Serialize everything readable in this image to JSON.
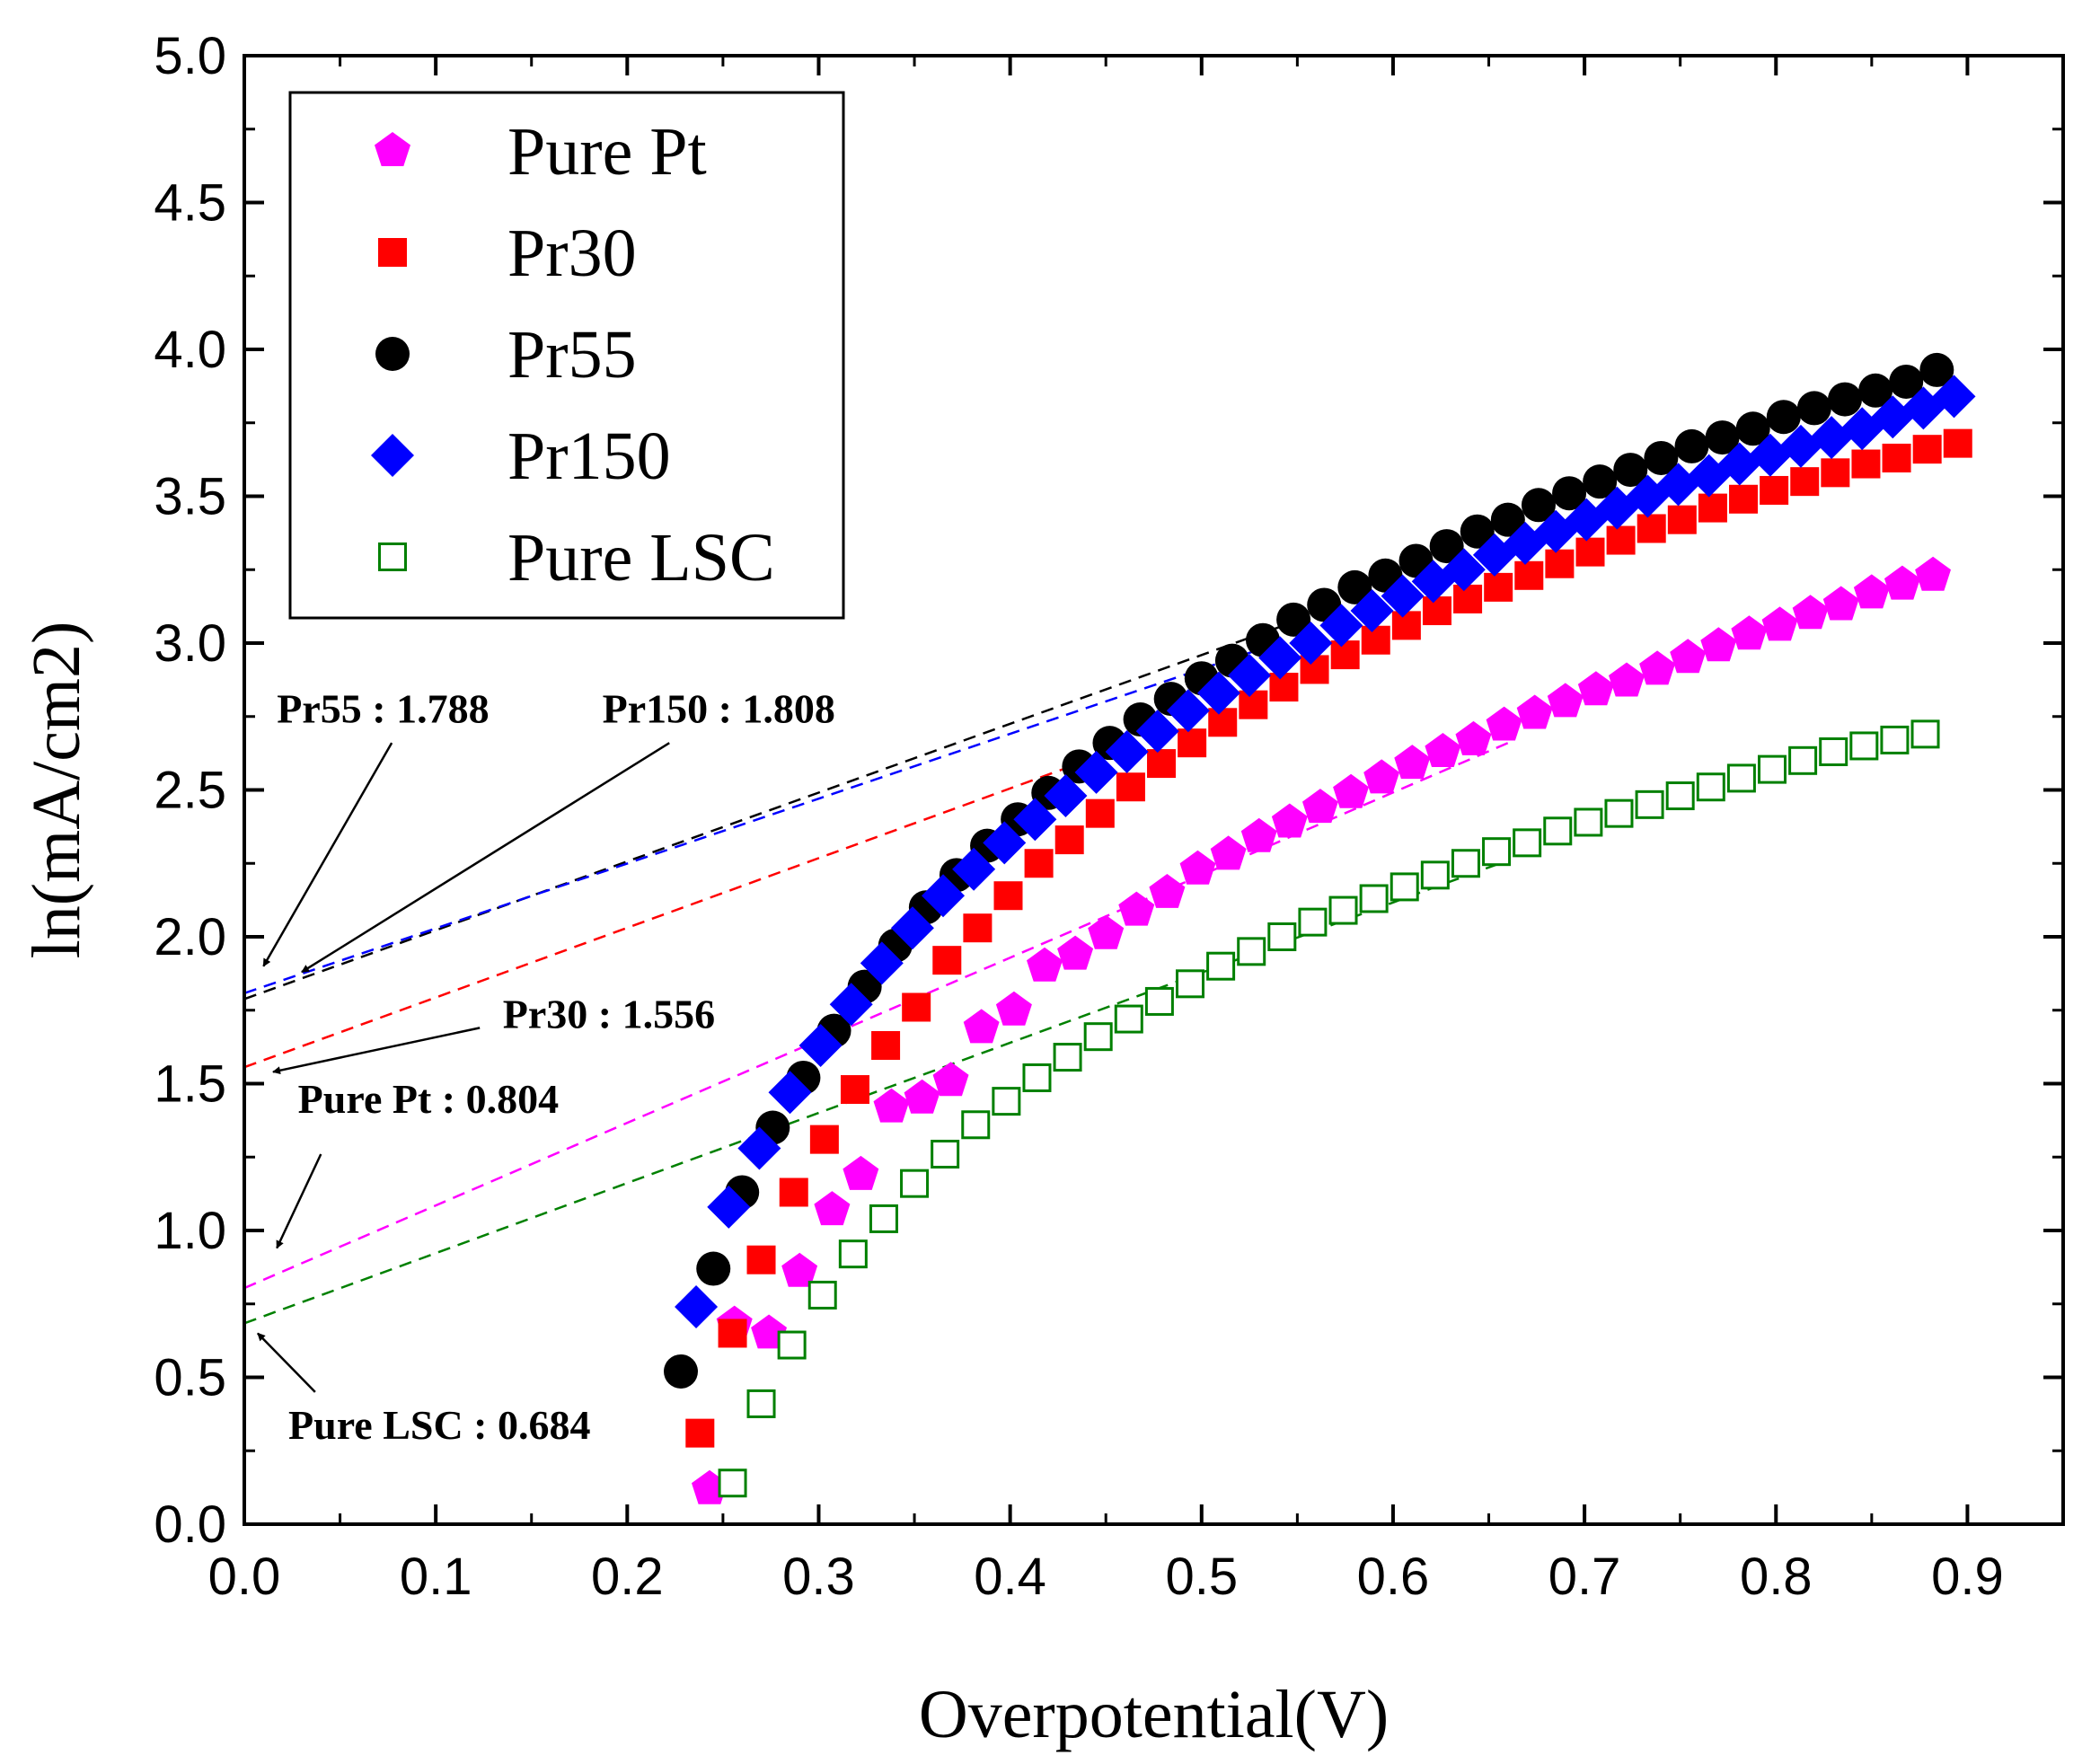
{
  "chart_data": {
    "type": "scatter",
    "xlabel": "Overpotential(V)",
    "ylabel": "ln(mA/cm2)",
    "xlim": [
      0,
      0.95
    ],
    "ylim": [
      0,
      5.0
    ],
    "x_ticks": [
      "0.0",
      "0.1",
      "0.2",
      "0.3",
      "0.4",
      "0.5",
      "0.6",
      "0.7",
      "0.8",
      "0.9"
    ],
    "y_ticks": [
      "0.0",
      "0.5",
      "1.0",
      "1.5",
      "2.0",
      "2.5",
      "3.0",
      "3.5",
      "4.0",
      "4.5",
      "5.0"
    ],
    "legend_position": "top-left",
    "series": [
      {
        "name": "Pure Pt",
        "marker": "pentagon",
        "color": "#ff00ff",
        "x": [
          0.243,
          0.256,
          0.274,
          0.29,
          0.307,
          0.322,
          0.338,
          0.354,
          0.369,
          0.385,
          0.402,
          0.418,
          0.434,
          0.45,
          0.466,
          0.482,
          0.498,
          0.514,
          0.53,
          0.546,
          0.562,
          0.578,
          0.594,
          0.61,
          0.626,
          0.642,
          0.658,
          0.674,
          0.69,
          0.706,
          0.722,
          0.738,
          0.754,
          0.77,
          0.786,
          0.802,
          0.818,
          0.834,
          0.85,
          0.866,
          0.882
        ],
        "y": [
          0.12,
          0.68,
          0.65,
          0.86,
          1.07,
          1.19,
          1.42,
          1.45,
          1.51,
          1.69,
          1.75,
          1.9,
          1.94,
          2.01,
          2.09,
          2.15,
          2.23,
          2.28,
          2.34,
          2.39,
          2.44,
          2.49,
          2.54,
          2.59,
          2.63,
          2.67,
          2.72,
          2.76,
          2.8,
          2.84,
          2.87,
          2.91,
          2.95,
          2.99,
          3.03,
          3.06,
          3.1,
          3.13,
          3.17,
          3.2,
          3.23
        ]
      },
      {
        "name": "Pr30",
        "marker": "square",
        "color": "#ff0000",
        "x": [
          0.238,
          0.255,
          0.27,
          0.287,
          0.303,
          0.319,
          0.335,
          0.351,
          0.367,
          0.383,
          0.399,
          0.415,
          0.431,
          0.447,
          0.463,
          0.479,
          0.495,
          0.511,
          0.527,
          0.543,
          0.559,
          0.575,
          0.591,
          0.607,
          0.623,
          0.639,
          0.655,
          0.671,
          0.687,
          0.703,
          0.719,
          0.735,
          0.751,
          0.767,
          0.783,
          0.799,
          0.815,
          0.831,
          0.847,
          0.863,
          0.879,
          0.895
        ],
        "y": [
          0.31,
          0.65,
          0.9,
          1.13,
          1.31,
          1.48,
          1.63,
          1.76,
          1.92,
          2.03,
          2.14,
          2.25,
          2.33,
          2.42,
          2.51,
          2.59,
          2.66,
          2.73,
          2.79,
          2.85,
          2.91,
          2.96,
          3.01,
          3.06,
          3.11,
          3.15,
          3.19,
          3.23,
          3.27,
          3.31,
          3.35,
          3.39,
          3.42,
          3.46,
          3.49,
          3.52,
          3.55,
          3.58,
          3.61,
          3.63,
          3.66,
          3.68
        ]
      },
      {
        "name": "Pr55",
        "marker": "circle",
        "color": "#000000",
        "x": [
          0.228,
          0.245,
          0.26,
          0.276,
          0.292,
          0.308,
          0.324,
          0.34,
          0.356,
          0.372,
          0.388,
          0.404,
          0.42,
          0.436,
          0.452,
          0.468,
          0.484,
          0.5,
          0.516,
          0.532,
          0.548,
          0.564,
          0.58,
          0.596,
          0.612,
          0.628,
          0.644,
          0.66,
          0.676,
          0.692,
          0.708,
          0.724,
          0.74,
          0.756,
          0.772,
          0.788,
          0.804,
          0.82,
          0.836,
          0.852,
          0.868,
          0.884
        ],
        "y": [
          0.52,
          0.87,
          1.13,
          1.35,
          1.52,
          1.68,
          1.83,
          1.97,
          2.1,
          2.21,
          2.31,
          2.4,
          2.49,
          2.58,
          2.66,
          2.74,
          2.81,
          2.88,
          2.94,
          3.01,
          3.08,
          3.13,
          3.19,
          3.23,
          3.28,
          3.33,
          3.38,
          3.42,
          3.47,
          3.51,
          3.55,
          3.59,
          3.63,
          3.67,
          3.7,
          3.73,
          3.77,
          3.8,
          3.83,
          3.86,
          3.89,
          3.93
        ]
      },
      {
        "name": "Pr150",
        "marker": "diamond",
        "color": "#0000ff",
        "x": [
          0.236,
          0.253,
          0.269,
          0.285,
          0.301,
          0.317,
          0.333,
          0.349,
          0.365,
          0.381,
          0.397,
          0.413,
          0.429,
          0.445,
          0.461,
          0.477,
          0.493,
          0.509,
          0.525,
          0.541,
          0.557,
          0.573,
          0.589,
          0.605,
          0.621,
          0.637,
          0.653,
          0.669,
          0.685,
          0.701,
          0.717,
          0.733,
          0.749,
          0.765,
          0.781,
          0.797,
          0.813,
          0.829,
          0.845,
          0.861,
          0.877,
          0.893
        ],
        "y": [
          0.74,
          1.08,
          1.28,
          1.47,
          1.63,
          1.77,
          1.91,
          2.03,
          2.14,
          2.23,
          2.32,
          2.4,
          2.48,
          2.56,
          2.63,
          2.7,
          2.77,
          2.83,
          2.89,
          2.95,
          3.0,
          3.06,
          3.11,
          3.16,
          3.21,
          3.25,
          3.3,
          3.34,
          3.38,
          3.42,
          3.46,
          3.5,
          3.54,
          3.57,
          3.61,
          3.64,
          3.67,
          3.7,
          3.73,
          3.77,
          3.8,
          3.84
        ]
      },
      {
        "name": "Pure LSC",
        "marker": "open-square",
        "color": "#008000",
        "x": [
          0.255,
          0.27,
          0.286,
          0.302,
          0.318,
          0.334,
          0.35,
          0.366,
          0.382,
          0.398,
          0.414,
          0.43,
          0.446,
          0.462,
          0.478,
          0.494,
          0.51,
          0.526,
          0.542,
          0.558,
          0.574,
          0.59,
          0.606,
          0.622,
          0.638,
          0.654,
          0.67,
          0.686,
          0.702,
          0.718,
          0.734,
          0.75,
          0.766,
          0.782,
          0.798,
          0.814,
          0.83,
          0.846,
          0.862,
          0.878
        ],
        "y": [
          0.14,
          0.41,
          0.61,
          0.78,
          0.92,
          1.04,
          1.16,
          1.26,
          1.36,
          1.44,
          1.52,
          1.59,
          1.66,
          1.72,
          1.78,
          1.84,
          1.9,
          1.95,
          2.0,
          2.05,
          2.09,
          2.13,
          2.17,
          2.21,
          2.25,
          2.29,
          2.32,
          2.36,
          2.39,
          2.42,
          2.45,
          2.48,
          2.51,
          2.54,
          2.57,
          2.6,
          2.63,
          2.65,
          2.67,
          2.69
        ]
      }
    ],
    "fit_lines": [
      {
        "label": "Pr55 : 1.788",
        "color": "#000000",
        "intercept": 1.788,
        "end": [
          0.56,
          3.1
        ]
      },
      {
        "label": "Pr150 : 1.808",
        "color": "#0000ff",
        "intercept": 1.808,
        "end": [
          0.54,
          3.0
        ]
      },
      {
        "label": "Pr30 : 1.556",
        "color": "#ff0000",
        "intercept": 1.556,
        "end": [
          0.44,
          2.6
        ]
      },
      {
        "label": "Pure Pt : 0.804",
        "color": "#ff00ff",
        "intercept": 0.804,
        "end": [
          0.66,
          2.66
        ]
      },
      {
        "label": "Pure LSC : 0.684",
        "color": "#008000",
        "intercept": 0.684,
        "end": [
          0.66,
          2.26
        ]
      }
    ],
    "annotations": [
      {
        "text": "Pr55 : 1.788",
        "text_at": [
          0.017,
          2.73
        ],
        "anchor": "start",
        "arrow_from": [
          0.077,
          2.66
        ],
        "arrow_to": [
          0.01,
          1.9
        ]
      },
      {
        "text": "Pr150 : 1.808",
        "text_at": [
          0.187,
          2.73
        ],
        "anchor": "start",
        "arrow_from": [
          0.222,
          2.66
        ],
        "arrow_to": [
          0.03,
          1.88
        ]
      },
      {
        "text": "Pr30 : 1.556",
        "text_at": [
          0.135,
          1.69
        ],
        "anchor": "start",
        "arrow_from": [
          0.123,
          1.69
        ],
        "arrow_to": [
          0.015,
          1.54
        ]
      },
      {
        "text": "Pure Pt : 0.804",
        "text_at": [
          0.028,
          1.4
        ],
        "anchor": "start",
        "arrow_from": [
          0.04,
          1.26
        ],
        "arrow_to": [
          0.017,
          0.94
        ]
      },
      {
        "text": "Pure LSC : 0.684",
        "text_at": [
          0.023,
          0.29
        ],
        "anchor": "start",
        "arrow_from": [
          0.037,
          0.45
        ],
        "arrow_to": [
          0.007,
          0.65
        ]
      }
    ]
  }
}
